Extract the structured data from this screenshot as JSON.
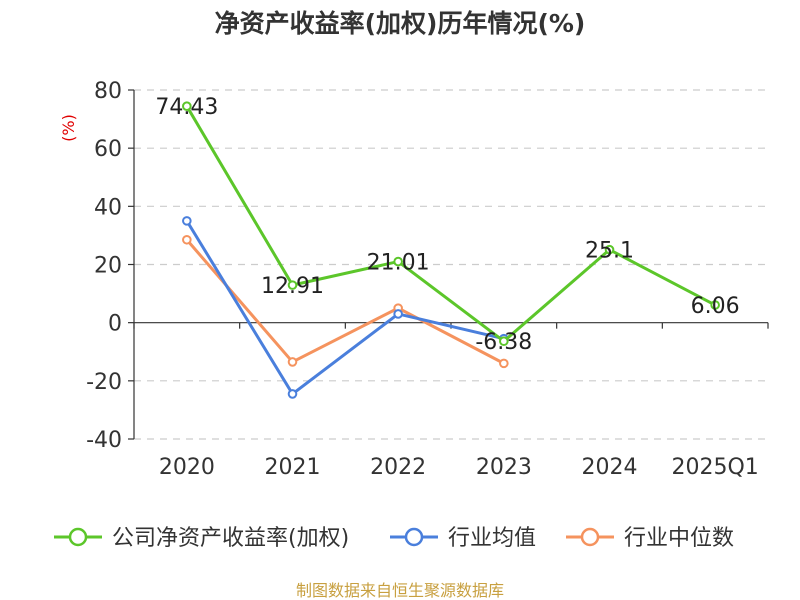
{
  "chart_data": {
    "type": "line",
    "title": "净资产收益率(加权)历年情况(%)",
    "y_unit": "(%)",
    "categories": [
      "2020",
      "2021",
      "2022",
      "2023",
      "2024",
      "2025Q1"
    ],
    "ylim": [
      -40,
      80
    ],
    "yticks": [
      80,
      60,
      40,
      20,
      0,
      -20,
      -40
    ],
    "grid": true,
    "legend_position": "bottom",
    "series": [
      {
        "name": "公司净资产收益率(加权)",
        "color": "#5cc62a",
        "values": [
          74.43,
          12.91,
          21.01,
          -6.38,
          25.1,
          6.06
        ],
        "labels": [
          "74.43",
          "12.91",
          "21.01",
          "-6.38",
          "25.1",
          "6.06"
        ]
      },
      {
        "name": "行业均值",
        "color": "#4a7fdc",
        "values": [
          35.0,
          -24.5,
          3.0,
          -5.5,
          null,
          null
        ]
      },
      {
        "name": "行业中位数",
        "color": "#f5935e",
        "values": [
          28.5,
          -13.5,
          5.0,
          -14.0,
          null,
          null
        ]
      }
    ]
  },
  "source": "制图数据来自恒生聚源数据库"
}
